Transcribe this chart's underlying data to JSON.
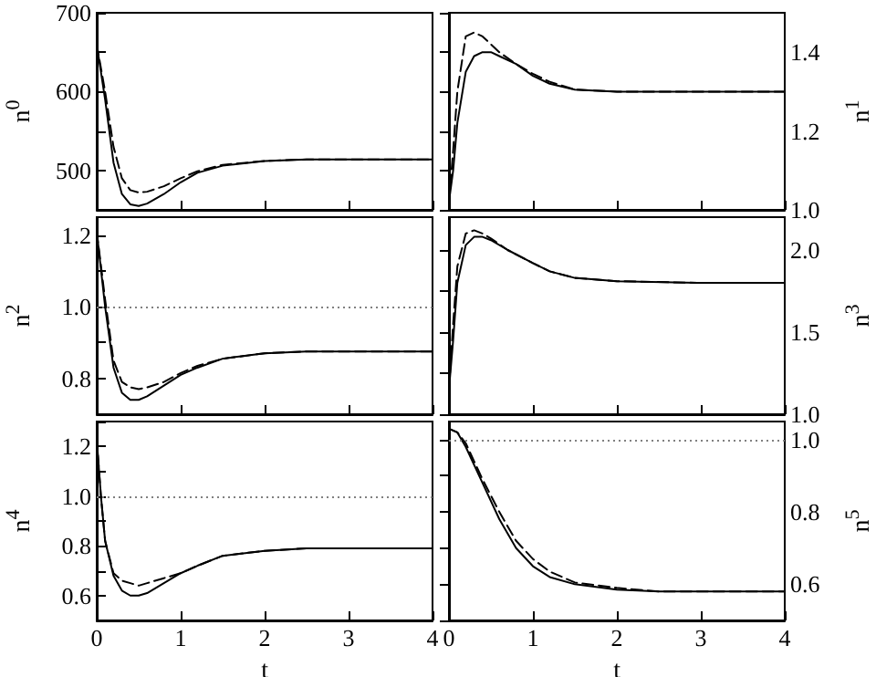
{
  "chart_data": [
    {
      "type": "line",
      "ylabel": "n$^{0}$",
      "xlim": [
        0,
        4
      ],
      "xticks": [
        0,
        1,
        2,
        3,
        4
      ],
      "ylim": [
        450,
        700
      ],
      "yticks": [
        {
          "value": 450,
          "label": null
        },
        500,
        {
          "value": 550,
          "label": null
        },
        600,
        {
          "value": 650,
          "label": null
        },
        700
      ],
      "tick_labels": "y",
      "grid": false,
      "marker": "none",
      "x": [
        0,
        0.1,
        0.2,
        0.3,
        0.4,
        0.5,
        0.6,
        0.8,
        1.0,
        1.2,
        1.5,
        2,
        2.5,
        3,
        4
      ],
      "series": [
        {
          "color": "#000000",
          "line_style": "solid",
          "values": [
            660,
            590,
            510,
            470,
            457,
            455,
            458,
            470,
            485,
            497,
            506,
            512,
            514,
            514,
            514
          ]
        },
        {
          "color": "#000000",
          "line_style": "dashed",
          "values": [
            660,
            600,
            530,
            490,
            475,
            472,
            473,
            480,
            490,
            499,
            507,
            512,
            514,
            514,
            514
          ]
        }
      ]
    },
    {
      "type": "line",
      "ylabel": "n$^{1}$",
      "xlim": [
        0,
        4
      ],
      "xticks": [
        0,
        1,
        2,
        3,
        4
      ],
      "ylim": [
        1.0,
        1.5
      ],
      "yticks": [
        {
          "value": 1,
          "label": "1.0"
        },
        {
          "value": 1.1,
          "label": null
        },
        1.2,
        {
          "value": 1.3,
          "label": null
        },
        1.4,
        {
          "value": 1.5,
          "label": null
        }
      ],
      "tick_labels": "y",
      "grid": false,
      "marker": "none",
      "x": [
        0,
        0.05,
        0.1,
        0.2,
        0.3,
        0.4,
        0.5,
        0.6,
        0.8,
        1.0,
        1.2,
        1.5,
        2,
        3,
        4
      ],
      "series": [
        {
          "color": "#000000",
          "line_style": "solid",
          "values": [
            1.02,
            1.1,
            1.22,
            1.35,
            1.39,
            1.4,
            1.4,
            1.39,
            1.37,
            1.34,
            1.32,
            1.305,
            1.3,
            1.3,
            1.3
          ]
        },
        {
          "color": "#000000",
          "line_style": "dashed",
          "values": [
            1.02,
            1.15,
            1.3,
            1.44,
            1.45,
            1.44,
            1.42,
            1.4,
            1.37,
            1.345,
            1.325,
            1.305,
            1.3,
            1.3,
            1.3
          ]
        }
      ]
    },
    {
      "type": "line",
      "ylabel": "n$^{2}$",
      "xlim": [
        0,
        4
      ],
      "xticks": [
        0,
        1,
        2,
        3,
        4
      ],
      "ylim": [
        0.7,
        1.25
      ],
      "yticks": [
        {
          "value": 0.7,
          "label": null
        },
        0.8,
        {
          "value": 0.9,
          "label": null
        },
        {
          "value": 1,
          "label": "1.0"
        },
        {
          "value": 1.1,
          "label": null
        },
        1.2
      ],
      "tick_labels": "y",
      "grid": false,
      "marker": "none",
      "x": [
        0,
        0.1,
        0.2,
        0.3,
        0.4,
        0.5,
        0.6,
        0.8,
        1.0,
        1.2,
        1.5,
        2,
        2.5,
        4
      ],
      "ref_lines": [
        {
          "axis": "y",
          "value": 1,
          "line_style": "dotted",
          "color": "#808080"
        }
      ],
      "series": [
        {
          "color": "#000000",
          "line_style": "solid",
          "values": [
            1.21,
            1.0,
            0.83,
            0.76,
            0.74,
            0.74,
            0.75,
            0.78,
            0.81,
            0.83,
            0.855,
            0.87,
            0.875,
            0.875
          ]
        },
        {
          "color": "#000000",
          "line_style": "dashed",
          "values": [
            1.21,
            1.02,
            0.85,
            0.79,
            0.775,
            0.77,
            0.775,
            0.79,
            0.815,
            0.835,
            0.855,
            0.87,
            0.875,
            0.875
          ]
        }
      ]
    },
    {
      "type": "line",
      "ylabel": "n$^{3}$",
      "xlim": [
        0,
        4
      ],
      "xticks": [
        0,
        1,
        2,
        3,
        4
      ],
      "ylim": [
        1.0,
        2.2
      ],
      "yticks": [
        {
          "value": 1,
          "label": "1.0"
        },
        {
          "value": 1.25,
          "label": null
        },
        1.5,
        {
          "value": 1.75,
          "label": null
        },
        {
          "value": 2,
          "label": "2.0"
        }
      ],
      "tick_labels": "y",
      "grid": false,
      "marker": "none",
      "x": [
        0,
        0.05,
        0.1,
        0.2,
        0.3,
        0.4,
        0.5,
        0.7,
        1.0,
        1.2,
        1.5,
        2,
        3,
        4
      ],
      "series": [
        {
          "color": "#000000",
          "line_style": "solid",
          "values": [
            1.15,
            1.45,
            1.8,
            2.03,
            2.08,
            2.08,
            2.06,
            2.0,
            1.92,
            1.87,
            1.83,
            1.81,
            1.8,
            1.8
          ]
        },
        {
          "color": "#000000",
          "line_style": "dashed",
          "values": [
            1.15,
            1.55,
            1.9,
            2.1,
            2.12,
            2.1,
            2.07,
            2.0,
            1.92,
            1.87,
            1.83,
            1.81,
            1.8,
            1.8
          ]
        }
      ]
    },
    {
      "type": "line",
      "ylabel": "n$^{4}$",
      "xlabel": "t",
      "xlim": [
        0,
        4
      ],
      "xticks": [
        0,
        1,
        2,
        3,
        4
      ],
      "ylim": [
        0.5,
        1.3
      ],
      "yticks": [
        {
          "value": 0.5,
          "label": null
        },
        0.6,
        {
          "value": 0.7,
          "label": null
        },
        0.8,
        {
          "value": 0.9,
          "label": null
        },
        {
          "value": 1,
          "label": "1.0"
        },
        {
          "value": 1.1,
          "label": null
        },
        1.2,
        {
          "value": 1.3,
          "label": null
        }
      ],
      "grid": false,
      "marker": "none",
      "x": [
        0,
        0.05,
        0.1,
        0.2,
        0.3,
        0.4,
        0.5,
        0.6,
        0.8,
        1.0,
        1.2,
        1.5,
        2,
        2.5,
        4
      ],
      "ref_lines": [
        {
          "axis": "y",
          "value": 1,
          "line_style": "dotted",
          "color": "#808080"
        }
      ],
      "series": [
        {
          "color": "#000000",
          "line_style": "solid",
          "values": [
            1.23,
            1.0,
            0.82,
            0.68,
            0.62,
            0.6,
            0.6,
            0.61,
            0.65,
            0.69,
            0.72,
            0.76,
            0.78,
            0.79,
            0.79
          ]
        },
        {
          "color": "#000000",
          "line_style": "dashed",
          "values": [
            1.23,
            1.0,
            0.82,
            0.69,
            0.66,
            0.65,
            0.64,
            0.65,
            0.67,
            0.69,
            0.72,
            0.76,
            0.78,
            0.79,
            0.79
          ]
        }
      ]
    },
    {
      "type": "line",
      "ylabel": "n$^{5}$",
      "xlabel": "t",
      "xlim": [
        0,
        4
      ],
      "xticks": [
        0,
        1,
        2,
        3,
        4
      ],
      "ylim": [
        0.5,
        1.05
      ],
      "yticks": [
        {
          "value": 0.5,
          "label": null
        },
        0.6,
        {
          "value": 0.7,
          "label": null
        },
        0.8,
        {
          "value": 0.9,
          "label": null
        },
        {
          "value": 1,
          "label": "1.0"
        }
      ],
      "grid": false,
      "marker": "none",
      "x": [
        0,
        0.1,
        0.2,
        0.4,
        0.6,
        0.8,
        1.0,
        1.2,
        1.5,
        2,
        2.5,
        4
      ],
      "ref_lines": [
        {
          "axis": "y",
          "value": 1,
          "line_style": "dotted",
          "color": "#808080"
        }
      ],
      "series": [
        {
          "color": "#000000",
          "line_style": "solid",
          "values": [
            1.03,
            1.02,
            0.98,
            0.88,
            0.78,
            0.7,
            0.65,
            0.62,
            0.6,
            0.585,
            0.58,
            0.58
          ]
        },
        {
          "color": "#000000",
          "line_style": "dashed",
          "values": [
            1.03,
            1.02,
            0.99,
            0.89,
            0.8,
            0.72,
            0.67,
            0.635,
            0.605,
            0.59,
            0.58,
            0.58
          ]
        }
      ]
    }
  ]
}
